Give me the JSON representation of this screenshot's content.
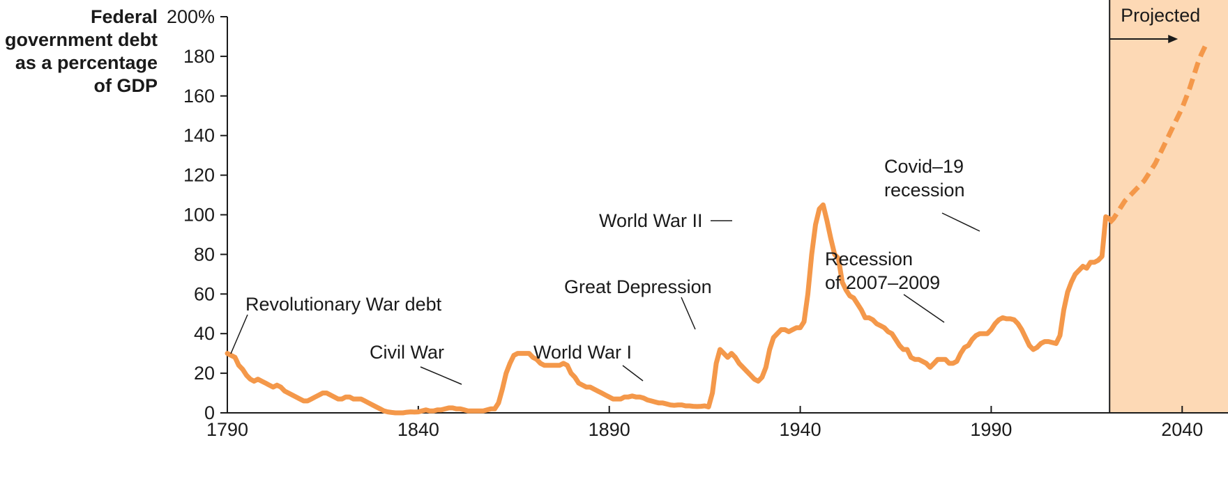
{
  "chart_data": {
    "type": "line",
    "ylabel_lines": [
      "Federal",
      "government debt",
      "as a percentage",
      "of GDP"
    ],
    "xlim": [
      1790,
      2052
    ],
    "ylim": [
      0,
      200
    ],
    "x_ticks": [
      1790,
      1840,
      1890,
      1940,
      1990,
      2040
    ],
    "y_ticks": [
      {
        "value": 0,
        "label": "0"
      },
      {
        "value": 20,
        "label": "20"
      },
      {
        "value": 40,
        "label": "40"
      },
      {
        "value": 60,
        "label": "60"
      },
      {
        "value": 80,
        "label": "80"
      },
      {
        "value": 100,
        "label": "100"
      },
      {
        "value": 120,
        "label": "120"
      },
      {
        "value": 140,
        "label": "140"
      },
      {
        "value": 160,
        "label": "160"
      },
      {
        "value": 180,
        "label": "180"
      },
      {
        "value": 200,
        "label": "200%"
      }
    ],
    "line_color": "#f4984a",
    "projection_shade_color": "#fdd9b5",
    "projected_label": "Projected",
    "projection_start": 2021,
    "series": [
      {
        "style": "solid",
        "points": [
          [
            1790,
            30
          ],
          [
            1791,
            29
          ],
          [
            1792,
            28
          ],
          [
            1793,
            24
          ],
          [
            1794,
            22
          ],
          [
            1795,
            19
          ],
          [
            1796,
            17
          ],
          [
            1797,
            16
          ],
          [
            1798,
            17
          ],
          [
            1799,
            16
          ],
          [
            1800,
            15
          ],
          [
            1801,
            14
          ],
          [
            1802,
            13
          ],
          [
            1803,
            14
          ],
          [
            1804,
            13
          ],
          [
            1805,
            11
          ],
          [
            1806,
            10
          ],
          [
            1807,
            9
          ],
          [
            1808,
            8
          ],
          [
            1809,
            7
          ],
          [
            1810,
            6
          ],
          [
            1811,
            6
          ],
          [
            1812,
            7
          ],
          [
            1813,
            8
          ],
          [
            1814,
            9
          ],
          [
            1815,
            10
          ],
          [
            1816,
            10
          ],
          [
            1817,
            9
          ],
          [
            1818,
            8
          ],
          [
            1819,
            7
          ],
          [
            1820,
            7
          ],
          [
            1821,
            8
          ],
          [
            1822,
            8
          ],
          [
            1823,
            7
          ],
          [
            1824,
            7
          ],
          [
            1825,
            7
          ],
          [
            1826,
            6
          ],
          [
            1827,
            5
          ],
          [
            1828,
            4
          ],
          [
            1829,
            3
          ],
          [
            1830,
            2
          ],
          [
            1831,
            1
          ],
          [
            1832,
            0.5
          ],
          [
            1833,
            0.2
          ],
          [
            1834,
            0
          ],
          [
            1835,
            0
          ],
          [
            1836,
            0
          ],
          [
            1837,
            0.3
          ],
          [
            1838,
            0.5
          ],
          [
            1839,
            0.4
          ],
          [
            1840,
            0.5
          ],
          [
            1841,
            1
          ],
          [
            1842,
            1.5
          ],
          [
            1843,
            1
          ],
          [
            1844,
            1
          ],
          [
            1845,
            1.5
          ],
          [
            1846,
            1.5
          ],
          [
            1847,
            2
          ],
          [
            1848,
            2.5
          ],
          [
            1849,
            2.5
          ],
          [
            1850,
            2
          ],
          [
            1851,
            2
          ],
          [
            1852,
            1.5
          ],
          [
            1853,
            1
          ],
          [
            1854,
            1
          ],
          [
            1855,
            1
          ],
          [
            1856,
            1
          ],
          [
            1857,
            1
          ],
          [
            1858,
            1.5
          ],
          [
            1859,
            2
          ],
          [
            1860,
            2
          ],
          [
            1861,
            5
          ],
          [
            1862,
            12
          ],
          [
            1863,
            20
          ],
          [
            1864,
            25
          ],
          [
            1865,
            29
          ],
          [
            1866,
            30
          ],
          [
            1867,
            30
          ],
          [
            1868,
            30
          ],
          [
            1869,
            30
          ],
          [
            1870,
            28
          ],
          [
            1871,
            27
          ],
          [
            1872,
            25
          ],
          [
            1873,
            24
          ],
          [
            1874,
            24
          ],
          [
            1875,
            24
          ],
          [
            1876,
            24
          ],
          [
            1877,
            24
          ],
          [
            1878,
            25
          ],
          [
            1879,
            24
          ],
          [
            1880,
            20
          ],
          [
            1881,
            18
          ],
          [
            1882,
            15
          ],
          [
            1883,
            14
          ],
          [
            1884,
            13
          ],
          [
            1885,
            13
          ],
          [
            1886,
            12
          ],
          [
            1887,
            11
          ],
          [
            1888,
            10
          ],
          [
            1889,
            9
          ],
          [
            1890,
            8
          ],
          [
            1891,
            7
          ],
          [
            1892,
            7
          ],
          [
            1893,
            7
          ],
          [
            1894,
            8
          ],
          [
            1895,
            8
          ],
          [
            1896,
            8.5
          ],
          [
            1897,
            8
          ],
          [
            1898,
            8
          ],
          [
            1899,
            7.5
          ],
          [
            1900,
            6.5
          ],
          [
            1901,
            6
          ],
          [
            1902,
            5.5
          ],
          [
            1903,
            5
          ],
          [
            1904,
            5
          ],
          [
            1905,
            4.5
          ],
          [
            1906,
            4
          ],
          [
            1907,
            3.8
          ],
          [
            1908,
            4
          ],
          [
            1909,
            4
          ],
          [
            1910,
            3.5
          ],
          [
            1911,
            3.5
          ],
          [
            1912,
            3.3
          ],
          [
            1913,
            3.2
          ],
          [
            1914,
            3.3
          ],
          [
            1915,
            3.5
          ],
          [
            1916,
            3
          ],
          [
            1917,
            10
          ],
          [
            1918,
            25
          ],
          [
            1919,
            32
          ],
          [
            1920,
            30
          ],
          [
            1921,
            28
          ],
          [
            1922,
            30
          ],
          [
            1923,
            28
          ],
          [
            1924,
            25
          ],
          [
            1925,
            23
          ],
          [
            1926,
            21
          ],
          [
            1927,
            19
          ],
          [
            1928,
            17
          ],
          [
            1929,
            16
          ],
          [
            1930,
            18
          ],
          [
            1931,
            23
          ],
          [
            1932,
            32
          ],
          [
            1933,
            38
          ],
          [
            1934,
            40
          ],
          [
            1935,
            42
          ],
          [
            1936,
            42
          ],
          [
            1937,
            41
          ],
          [
            1938,
            42
          ],
          [
            1939,
            43
          ],
          [
            1940,
            43
          ],
          [
            1941,
            46
          ],
          [
            1942,
            60
          ],
          [
            1943,
            80
          ],
          [
            1944,
            95
          ],
          [
            1945,
            103
          ],
          [
            1946,
            105
          ],
          [
            1947,
            97
          ],
          [
            1948,
            88
          ],
          [
            1949,
            80
          ],
          [
            1950,
            78
          ],
          [
            1951,
            66
          ],
          [
            1952,
            62
          ],
          [
            1953,
            59
          ],
          [
            1954,
            58
          ],
          [
            1955,
            55
          ],
          [
            1956,
            52
          ],
          [
            1957,
            48
          ],
          [
            1958,
            48
          ],
          [
            1959,
            47
          ],
          [
            1960,
            45
          ],
          [
            1961,
            44
          ],
          [
            1962,
            43
          ],
          [
            1963,
            41
          ],
          [
            1964,
            40
          ],
          [
            1965,
            37
          ],
          [
            1966,
            34
          ],
          [
            1967,
            32
          ],
          [
            1968,
            32
          ],
          [
            1969,
            28
          ],
          [
            1970,
            27
          ],
          [
            1971,
            27
          ],
          [
            1972,
            26
          ],
          [
            1973,
            25
          ],
          [
            1974,
            23
          ],
          [
            1975,
            25
          ],
          [
            1976,
            27
          ],
          [
            1977,
            27
          ],
          [
            1978,
            27
          ],
          [
            1979,
            25
          ],
          [
            1980,
            25
          ],
          [
            1981,
            26
          ],
          [
            1982,
            30
          ],
          [
            1983,
            33
          ],
          [
            1984,
            34
          ],
          [
            1985,
            37
          ],
          [
            1986,
            39
          ],
          [
            1987,
            40
          ],
          [
            1988,
            40
          ],
          [
            1989,
            40
          ],
          [
            1990,
            42
          ],
          [
            1991,
            45
          ],
          [
            1992,
            47
          ],
          [
            1993,
            48
          ],
          [
            1994,
            47.5
          ],
          [
            1995,
            47.5
          ],
          [
            1996,
            47
          ],
          [
            1997,
            45
          ],
          [
            1998,
            42
          ],
          [
            1999,
            38
          ],
          [
            2000,
            34
          ],
          [
            2001,
            32
          ],
          [
            2002,
            33
          ],
          [
            2003,
            35
          ],
          [
            2004,
            36
          ],
          [
            2005,
            36
          ],
          [
            2006,
            35.5
          ],
          [
            2007,
            35
          ],
          [
            2008,
            39
          ],
          [
            2009,
            52
          ],
          [
            2010,
            61
          ],
          [
            2011,
            66
          ],
          [
            2012,
            70
          ],
          [
            2013,
            72
          ],
          [
            2014,
            74
          ],
          [
            2015,
            73
          ],
          [
            2016,
            76
          ],
          [
            2017,
            76
          ],
          [
            2018,
            77
          ],
          [
            2019,
            79
          ],
          [
            2020,
            99
          ],
          [
            2021,
            98
          ]
        ]
      },
      {
        "style": "dashed",
        "points": [
          [
            2021,
            96
          ],
          [
            2022,
            98
          ],
          [
            2023,
            101
          ],
          [
            2024,
            104
          ],
          [
            2025,
            107
          ],
          [
            2026,
            109
          ],
          [
            2027,
            111
          ],
          [
            2028,
            113
          ],
          [
            2029,
            115
          ],
          [
            2030,
            117
          ],
          [
            2031,
            120
          ],
          [
            2032,
            123
          ],
          [
            2033,
            126
          ],
          [
            2034,
            130
          ],
          [
            2035,
            134
          ],
          [
            2036,
            138
          ],
          [
            2037,
            142
          ],
          [
            2038,
            146
          ],
          [
            2039,
            150
          ],
          [
            2040,
            154
          ],
          [
            2041,
            159
          ],
          [
            2042,
            164
          ],
          [
            2043,
            170
          ],
          [
            2044,
            176
          ],
          [
            2045,
            181
          ],
          [
            2046,
            185
          ]
        ]
      }
    ],
    "annotations": [
      {
        "id": "revolutionary-war",
        "lines": [
          "Revolutionary War debt"
        ]
      },
      {
        "id": "civil-war",
        "lines": [
          "Civil War"
        ]
      },
      {
        "id": "world-war-i",
        "lines": [
          "World War I"
        ]
      },
      {
        "id": "great-depression",
        "lines": [
          "Great Depression"
        ]
      },
      {
        "id": "world-war-ii",
        "lines": [
          "World War II"
        ]
      },
      {
        "id": "recession-2007",
        "lines": [
          "Recession",
          "of 2007–2009"
        ]
      },
      {
        "id": "covid-recession",
        "lines": [
          "Covid–19",
          "recession"
        ]
      }
    ]
  }
}
